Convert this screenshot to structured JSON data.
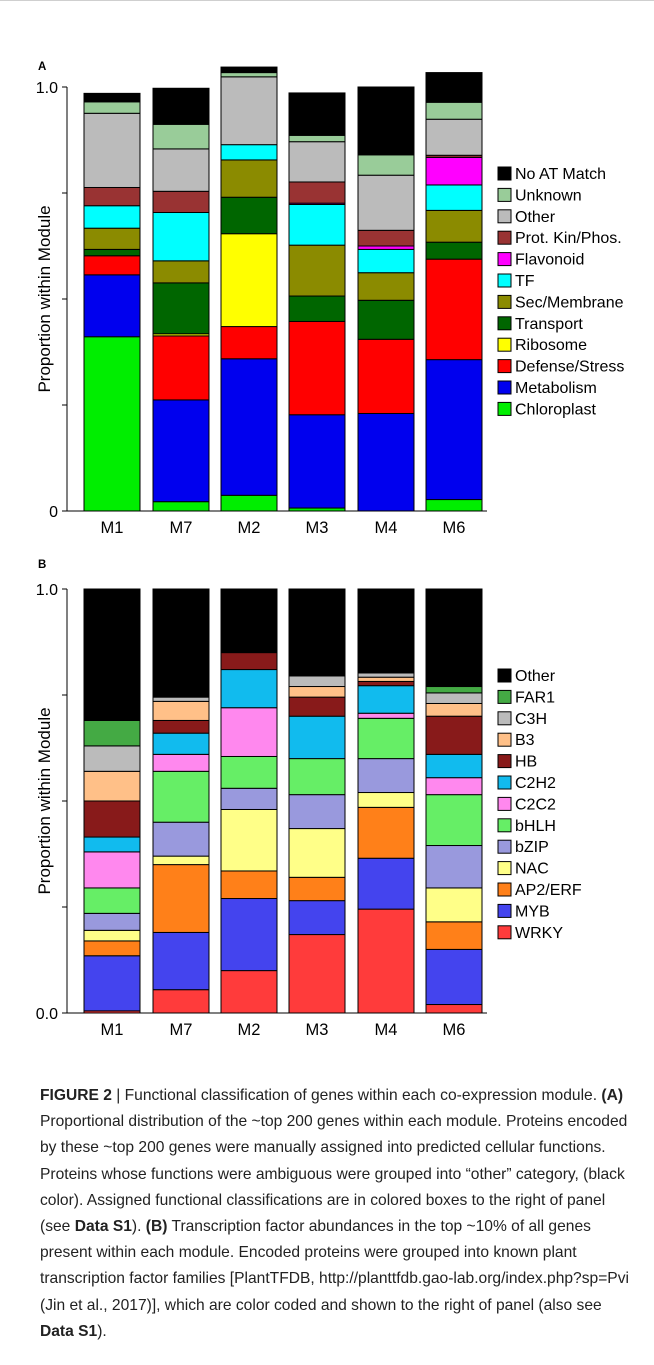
{
  "chart_data": [
    {
      "type": "bar",
      "stacked": true,
      "panel_label": "A",
      "title": "",
      "ylabel": "Proportion within Module",
      "xlabel": "",
      "ylim": [
        0,
        1
      ],
      "yticks": [
        0,
        0.25,
        0.5,
        0.75,
        1.0
      ],
      "ytick_labels": [
        "0",
        "",
        "",
        "",
        "1.0"
      ],
      "grid": false,
      "legend_position": "right",
      "categories": [
        "M1",
        "M7",
        "M2",
        "M3",
        "M4",
        "M6"
      ],
      "series": [
        {
          "name": "Chloroplast",
          "color": "#00ee00",
          "values": [
            0.411,
            0.022,
            0.037,
            0.007,
            0.0,
            0.027
          ]
        },
        {
          "name": "Metabolism",
          "color": "#0000ee",
          "values": [
            0.146,
            0.24,
            0.322,
            0.22,
            0.23,
            0.33
          ]
        },
        {
          "name": "Defense/Stress",
          "color": "#ff0000",
          "values": [
            0.045,
            0.151,
            0.076,
            0.22,
            0.175,
            0.237
          ]
        },
        {
          "name": "Ribosome",
          "color": "#ffff00",
          "values": [
            0.0,
            0.005,
            0.219,
            0.0,
            0.0,
            0.0
          ]
        },
        {
          "name": "Transport",
          "color": "#006600",
          "values": [
            0.015,
            0.12,
            0.086,
            0.06,
            0.092,
            0.04
          ]
        },
        {
          "name": "Sec/Membrane",
          "color": "#8b8b00",
          "values": [
            0.05,
            0.052,
            0.088,
            0.12,
            0.065,
            0.075
          ]
        },
        {
          "name": "TF",
          "color": "#00ffff",
          "values": [
            0.053,
            0.114,
            0.036,
            0.096,
            0.055,
            0.06
          ]
        },
        {
          "name": "Flavonoid",
          "color": "#ff00ff",
          "values": [
            0.0,
            0.0,
            0.0,
            0.003,
            0.008,
            0.065
          ]
        },
        {
          "name": "Prot. Kin/Phos.",
          "color": "#993333",
          "values": [
            0.043,
            0.05,
            0.0,
            0.05,
            0.037,
            0.005
          ]
        },
        {
          "name": "Other",
          "color": "#bbbbbb",
          "values": [
            0.175,
            0.1,
            0.16,
            0.095,
            0.13,
            0.085
          ]
        },
        {
          "name": "Unknown",
          "color": "#99cc99",
          "values": [
            0.027,
            0.058,
            0.01,
            0.015,
            0.048,
            0.04
          ]
        },
        {
          "name": "No AT Match",
          "color": "#000000",
          "values": [
            0.02,
            0.085,
            0.013,
            0.1,
            0.16,
            0.07
          ]
        }
      ]
    },
    {
      "type": "bar",
      "stacked": true,
      "panel_label": "B",
      "title": "",
      "ylabel": "Proportion within Module",
      "xlabel": "",
      "ylim": [
        0,
        1
      ],
      "yticks": [
        0,
        0.25,
        0.5,
        0.75,
        1.0
      ],
      "ytick_labels": [
        "0.0",
        "",
        "",
        "",
        "1.0"
      ],
      "grid": false,
      "legend_position": "right",
      "categories": [
        "M1",
        "M7",
        "M2",
        "M3",
        "M4",
        "M6"
      ],
      "series": [
        {
          "name": "WRKY",
          "color": "#ff3b3b",
          "values": [
            0.005,
            0.055,
            0.1,
            0.185,
            0.245,
            0.02
          ]
        },
        {
          "name": "MYB",
          "color": "#4444ee",
          "values": [
            0.13,
            0.135,
            0.17,
            0.08,
            0.12,
            0.13
          ]
        },
        {
          "name": "AP2/ERF",
          "color": "#ff8019",
          "values": [
            0.035,
            0.16,
            0.065,
            0.055,
            0.12,
            0.065
          ]
        },
        {
          "name": "NAC",
          "color": "#ffff88",
          "values": [
            0.025,
            0.02,
            0.145,
            0.115,
            0.035,
            0.08
          ]
        },
        {
          "name": "bZIP",
          "color": "#9999dd",
          "values": [
            0.04,
            0.08,
            0.05,
            0.08,
            0.08,
            0.1
          ]
        },
        {
          "name": "bHLH",
          "color": "#66ee66",
          "values": [
            0.06,
            0.12,
            0.075,
            0.085,
            0.095,
            0.12
          ]
        },
        {
          "name": "C2C2",
          "color": "#ff88ee",
          "values": [
            0.085,
            0.04,
            0.115,
            0.0,
            0.012,
            0.04
          ]
        },
        {
          "name": "C2H2",
          "color": "#11bbee",
          "values": [
            0.035,
            0.05,
            0.09,
            0.1,
            0.065,
            0.055
          ]
        },
        {
          "name": "HB",
          "color": "#881a1a",
          "values": [
            0.085,
            0.03,
            0.04,
            0.045,
            0.01,
            0.09
          ]
        },
        {
          "name": "B3",
          "color": "#ffc088",
          "values": [
            0.07,
            0.045,
            0.0,
            0.025,
            0.01,
            0.03
          ]
        },
        {
          "name": "C3H",
          "color": "#bbbbbb",
          "values": [
            0.06,
            0.01,
            0.0,
            0.025,
            0.01,
            0.025
          ]
        },
        {
          "name": "FAR1",
          "color": "#44aa44",
          "values": [
            0.06,
            0.0,
            0.0,
            0.0,
            0.0,
            0.015
          ]
        },
        {
          "name": "Other",
          "color": "#000000",
          "values": [
            0.31,
            0.255,
            0.15,
            0.205,
            0.198,
            0.23
          ]
        }
      ]
    }
  ],
  "caption": {
    "figure_label": "FIGURE 2",
    "separator": " | ",
    "intro": "Functional classification of genes within each co-expression module.",
    "part_a_label": "(A)",
    "part_a_text": "Proportional distribution of the ~top 200 genes within each module. Proteins encoded by these ~top 200 genes were manually assigned into predicted cellular functions. Proteins whose functions were ambiguous were grouped into “other” category, (black color). Assigned functional classifications are in colored boxes to the right of panel (see",
    "data_ref": "Data S1",
    "part_a_end": ").",
    "part_b_label": "(B)",
    "part_b_text": "Transcription factor abundances in the top ~10% of all genes present within each module. Encoded proteins were grouped into known plant transcription factor families [PlantTFDB, http://planttfdb.gao-lab.org/index.php?sp=Pvi (Jin et al., 2017)], which are color coded and shown to the right of panel (also see",
    "part_b_end": ")."
  }
}
